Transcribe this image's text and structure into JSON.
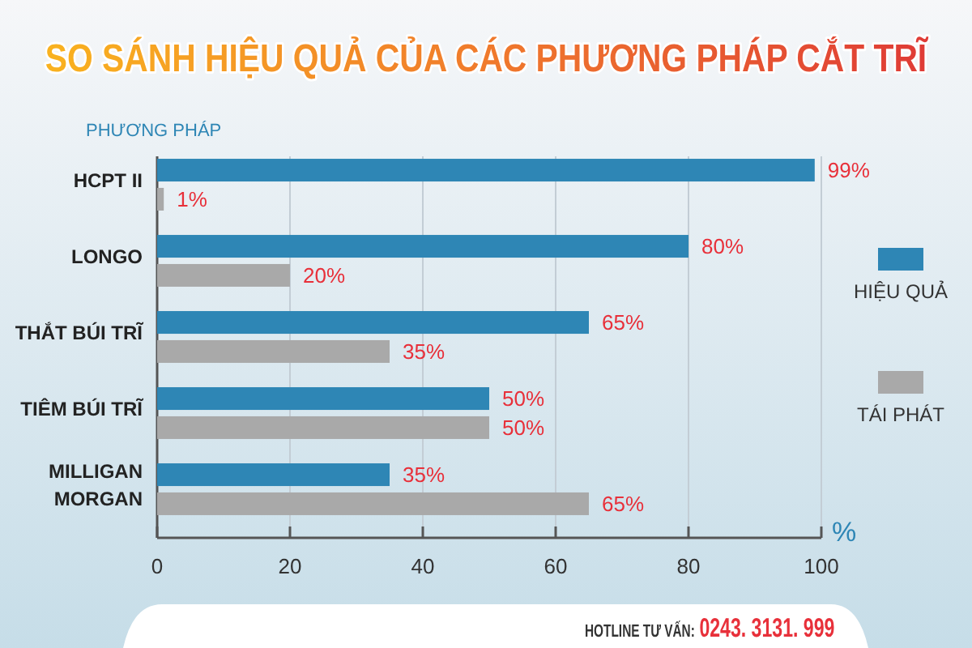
{
  "chart_data": {
    "type": "bar",
    "orientation": "horizontal",
    "title": "SO SÁNH HIỆU QUẢ CỦA CÁC PHƯƠNG PHÁP CẮT TRĨ",
    "ylabel": "PHƯƠNG PHÁP",
    "xlabel": "%",
    "categories": [
      "HCPT II",
      "LONGO",
      "THẮT BÚI TRĨ",
      "TIÊM BÚI TRĨ",
      "MILLIGAN MORGAN"
    ],
    "series": [
      {
        "name": "HIỆU QUẢ",
        "color": "#2e86b5",
        "values": [
          99,
          80,
          65,
          50,
          35
        ],
        "value_labels": [
          "99%",
          "80%",
          "65%",
          "50%",
          "35%"
        ]
      },
      {
        "name": "TÁI PHÁT",
        "color": "#a9a9a9",
        "values": [
          1,
          20,
          35,
          50,
          65
        ],
        "value_labels": [
          "1%",
          "20%",
          "35%",
          "50%",
          "65%"
        ]
      }
    ],
    "xlim": [
      0,
      100
    ],
    "xticks": [
      0,
      20,
      40,
      60,
      80,
      100
    ],
    "grid": "x",
    "legend": "right",
    "annotations": [
      "HOTLINE TƯ VẤN:",
      "0243. 3131. 999"
    ]
  }
}
